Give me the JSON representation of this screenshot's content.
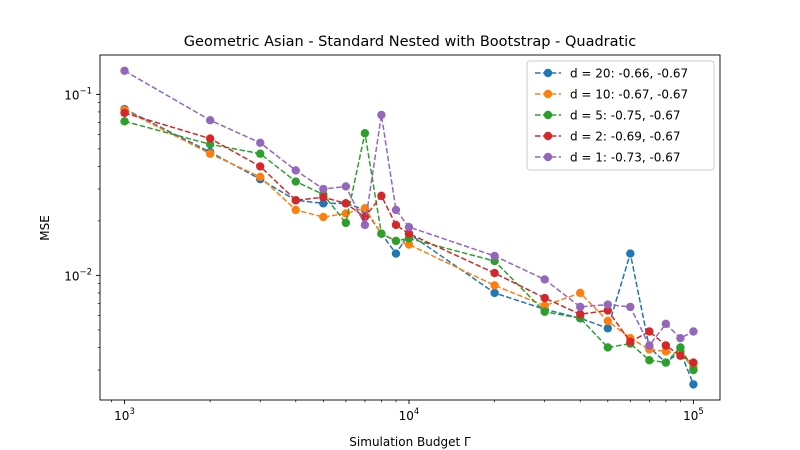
{
  "chart_data": {
    "type": "line",
    "title": "Geometric Asian - Standard Nested with Bootstrap - Quadratic",
    "xlabel": "Simulation Budget Γ",
    "ylabel": "MSE",
    "xscale": "log",
    "yscale": "log",
    "xlim": [
      820,
      124000
    ],
    "ylim": [
      0.00205,
      0.165
    ],
    "x_ticks": [
      {
        "value": 1000,
        "base": "10",
        "exp": "3"
      },
      {
        "value": 10000,
        "base": "10",
        "exp": "4"
      },
      {
        "value": 100000,
        "base": "10",
        "exp": "5"
      }
    ],
    "y_ticks": [
      {
        "value": 0.01,
        "base": "10",
        "exp": "−2"
      },
      {
        "value": 0.1,
        "base": "10",
        "exp": "−1"
      }
    ],
    "grid": false,
    "legend_position": "top-right",
    "x": [
      1000,
      2000,
      3000,
      4000,
      5000,
      6000,
      7000,
      8000,
      9000,
      10000,
      20000,
      30000,
      40000,
      50000,
      60000,
      70000,
      80000,
      90000,
      100000
    ],
    "series": [
      {
        "name": "d = 20: -0.66, -0.67",
        "color": "#1f77b4",
        "values": [
          0.083,
          0.048,
          0.034,
          0.026,
          0.025,
          0.025,
          0.023,
          0.017,
          0.0132,
          0.017,
          0.008,
          0.0065,
          0.0058,
          0.0051,
          0.0132,
          0.004,
          0.0033,
          0.0038,
          0.0025
        ]
      },
      {
        "name": "d = 10: -0.67, -0.67",
        "color": "#ff7f0e",
        "values": [
          0.082,
          0.047,
          0.035,
          0.023,
          0.021,
          0.022,
          0.0235,
          0.017,
          0.0155,
          0.0148,
          0.0088,
          0.0068,
          0.008,
          0.0056,
          0.0045,
          0.0039,
          0.0038,
          0.0037,
          0.0031
        ]
      },
      {
        "name": "d = 5: -0.75, -0.67",
        "color": "#2ca02c",
        "values": [
          0.071,
          0.053,
          0.047,
          0.033,
          0.028,
          0.0195,
          0.061,
          0.017,
          0.0155,
          0.016,
          0.012,
          0.0063,
          0.0058,
          0.004,
          0.0042,
          0.0034,
          0.0033,
          0.004,
          0.003
        ]
      },
      {
        "name": "d = 2: -0.69, -0.67",
        "color": "#d62728",
        "values": [
          0.079,
          0.057,
          0.04,
          0.026,
          0.027,
          0.025,
          0.021,
          0.0275,
          0.019,
          0.017,
          0.0103,
          0.0075,
          0.0061,
          0.0064,
          0.0043,
          0.0049,
          0.0041,
          0.0036,
          0.0033
        ]
      },
      {
        "name": "d = 1: -0.73, -0.67",
        "color": "#9467bd",
        "values": [
          0.135,
          0.072,
          0.054,
          0.038,
          0.03,
          0.031,
          0.019,
          0.077,
          0.023,
          0.0185,
          0.0128,
          0.0095,
          0.0067,
          0.0069,
          0.0067,
          0.0041,
          0.0054,
          0.0045,
          0.0049
        ]
      }
    ]
  }
}
